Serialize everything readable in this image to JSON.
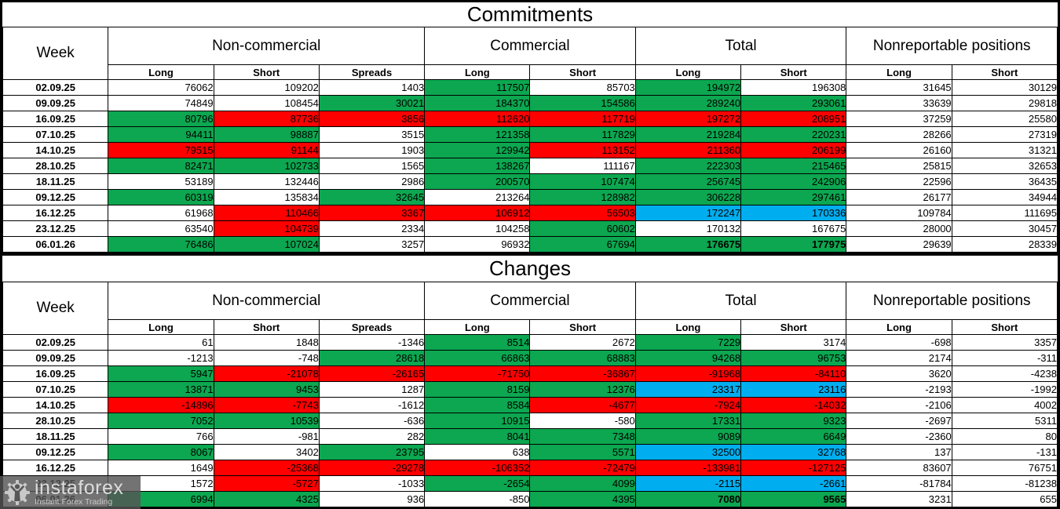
{
  "colors": {
    "w": "#FFFFFF",
    "g": "#0CA750",
    "r": "#FF0000",
    "b": "#00AEEF"
  },
  "header": {
    "week_label": "Week",
    "groups": [
      {
        "label": "Non-commercial",
        "columns": [
          "Long",
          "Short",
          "Spreads"
        ]
      },
      {
        "label": "Commercial",
        "columns": [
          "Long",
          "Short"
        ]
      },
      {
        "label": "Total",
        "columns": [
          "Long",
          "Short"
        ]
      },
      {
        "label": "Nonreportable positions",
        "columns": [
          "Long",
          "Short"
        ]
      }
    ]
  },
  "chart_data": [
    {
      "type": "table",
      "title": "Commitments",
      "rows": [
        {
          "week": "02.09.25",
          "cells": [
            [
              76062,
              "w"
            ],
            [
              109202,
              "w"
            ],
            [
              1403,
              "w"
            ],
            [
              117507,
              "g"
            ],
            [
              85703,
              "w"
            ],
            [
              194972,
              "g"
            ],
            [
              196308,
              "w"
            ],
            [
              31645,
              "w"
            ],
            [
              30129,
              "w"
            ]
          ]
        },
        {
          "week": "09.09.25",
          "cells": [
            [
              74849,
              "w"
            ],
            [
              108454,
              "w"
            ],
            [
              30021,
              "g"
            ],
            [
              184370,
              "g"
            ],
            [
              154586,
              "g"
            ],
            [
              289240,
              "g"
            ],
            [
              293061,
              "g"
            ],
            [
              33639,
              "w"
            ],
            [
              29818,
              "w"
            ]
          ]
        },
        {
          "week": "16.09.25",
          "cells": [
            [
              80796,
              "g"
            ],
            [
              87736,
              "r"
            ],
            [
              3856,
              "r"
            ],
            [
              112620,
              "r"
            ],
            [
              117719,
              "r"
            ],
            [
              197272,
              "r"
            ],
            [
              208951,
              "r"
            ],
            [
              37259,
              "w"
            ],
            [
              25580,
              "w"
            ]
          ]
        },
        {
          "week": "07.10.25",
          "cells": [
            [
              94411,
              "g"
            ],
            [
              98887,
              "g"
            ],
            [
              3515,
              "w"
            ],
            [
              121358,
              "g"
            ],
            [
              117829,
              "g"
            ],
            [
              219284,
              "g"
            ],
            [
              220231,
              "g"
            ],
            [
              28266,
              "w"
            ],
            [
              27319,
              "w"
            ]
          ]
        },
        {
          "week": "14.10.25",
          "cells": [
            [
              79515,
              "r"
            ],
            [
              91144,
              "r"
            ],
            [
              1903,
              "w"
            ],
            [
              129942,
              "g"
            ],
            [
              113152,
              "r"
            ],
            [
              211360,
              "r"
            ],
            [
              206199,
              "r"
            ],
            [
              26160,
              "w"
            ],
            [
              31321,
              "w"
            ]
          ]
        },
        {
          "week": "28.10.25",
          "cells": [
            [
              82471,
              "g"
            ],
            [
              102733,
              "g"
            ],
            [
              1565,
              "w"
            ],
            [
              138267,
              "g"
            ],
            [
              111167,
              "w"
            ],
            [
              222303,
              "g"
            ],
            [
              215465,
              "g"
            ],
            [
              25815,
              "w"
            ],
            [
              32653,
              "w"
            ]
          ]
        },
        {
          "week": "18.11.25",
          "cells": [
            [
              53189,
              "w"
            ],
            [
              132446,
              "w"
            ],
            [
              2986,
              "w"
            ],
            [
              200570,
              "g"
            ],
            [
              107474,
              "g"
            ],
            [
              256745,
              "g"
            ],
            [
              242906,
              "g"
            ],
            [
              22596,
              "w"
            ],
            [
              36435,
              "w"
            ]
          ]
        },
        {
          "week": "09.12.25",
          "cells": [
            [
              60319,
              "g"
            ],
            [
              135834,
              "w"
            ],
            [
              32645,
              "g"
            ],
            [
              213264,
              "w"
            ],
            [
              128982,
              "g"
            ],
            [
              306228,
              "g"
            ],
            [
              297461,
              "g"
            ],
            [
              26177,
              "w"
            ],
            [
              34944,
              "w"
            ]
          ]
        },
        {
          "week": "16.12.25",
          "cells": [
            [
              61968,
              "w"
            ],
            [
              110466,
              "r"
            ],
            [
              3367,
              "r"
            ],
            [
              106912,
              "r"
            ],
            [
              56503,
              "r"
            ],
            [
              172247,
              "b"
            ],
            [
              170336,
              "b"
            ],
            [
              109784,
              "w"
            ],
            [
              111695,
              "w"
            ]
          ]
        },
        {
          "week": "23.12.25",
          "cells": [
            [
              63540,
              "w"
            ],
            [
              104739,
              "r"
            ],
            [
              2334,
              "w"
            ],
            [
              104258,
              "w"
            ],
            [
              60602,
              "g"
            ],
            [
              170132,
              "w"
            ],
            [
              167675,
              "w"
            ],
            [
              28000,
              "w"
            ],
            [
              30457,
              "w"
            ]
          ]
        },
        {
          "week": "06.01.26",
          "cells": [
            [
              76486,
              "g"
            ],
            [
              107024,
              "g"
            ],
            [
              3257,
              "w"
            ],
            [
              96932,
              "w"
            ],
            [
              67694,
              "g"
            ],
            [
              176675,
              "g",
              1
            ],
            [
              177975,
              "g",
              1
            ],
            [
              29639,
              "w"
            ],
            [
              28339,
              "w"
            ]
          ]
        }
      ]
    },
    {
      "type": "table",
      "title": "Changes",
      "rows": [
        {
          "week": "02.09.25",
          "cells": [
            [
              61,
              "w"
            ],
            [
              1848,
              "w"
            ],
            [
              -1346,
              "w"
            ],
            [
              8514,
              "g"
            ],
            [
              2672,
              "w"
            ],
            [
              7229,
              "g"
            ],
            [
              3174,
              "w"
            ],
            [
              -698,
              "w"
            ],
            [
              3357,
              "w"
            ]
          ]
        },
        {
          "week": "09.09.25",
          "cells": [
            [
              -1213,
              "w"
            ],
            [
              -748,
              "w"
            ],
            [
              28618,
              "g"
            ],
            [
              66863,
              "g"
            ],
            [
              68883,
              "g"
            ],
            [
              94268,
              "g"
            ],
            [
              96753,
              "g"
            ],
            [
              2174,
              "w"
            ],
            [
              -311,
              "w"
            ]
          ]
        },
        {
          "week": "16.09.25",
          "cells": [
            [
              5947,
              "g"
            ],
            [
              -21078,
              "r"
            ],
            [
              -26165,
              "r"
            ],
            [
              -71750,
              "r"
            ],
            [
              -36867,
              "r"
            ],
            [
              -91968,
              "r"
            ],
            [
              -84110,
              "r"
            ],
            [
              3620,
              "w"
            ],
            [
              -4238,
              "w"
            ]
          ]
        },
        {
          "week": "07.10.25",
          "cells": [
            [
              13871,
              "g"
            ],
            [
              9453,
              "g"
            ],
            [
              1287,
              "w"
            ],
            [
              8159,
              "g"
            ],
            [
              12376,
              "g"
            ],
            [
              23317,
              "b"
            ],
            [
              23116,
              "b"
            ],
            [
              -2193,
              "w"
            ],
            [
              -1992,
              "w"
            ]
          ]
        },
        {
          "week": "14.10.25",
          "cells": [
            [
              -14896,
              "r"
            ],
            [
              -7743,
              "r"
            ],
            [
              -1612,
              "w"
            ],
            [
              8584,
              "g"
            ],
            [
              -4677,
              "r"
            ],
            [
              -7924,
              "r"
            ],
            [
              -14032,
              "r"
            ],
            [
              -2106,
              "w"
            ],
            [
              4002,
              "w"
            ]
          ]
        },
        {
          "week": "28.10.25",
          "cells": [
            [
              7052,
              "g"
            ],
            [
              10539,
              "g"
            ],
            [
              -636,
              "w"
            ],
            [
              10915,
              "g"
            ],
            [
              -580,
              "w"
            ],
            [
              17331,
              "g"
            ],
            [
              9323,
              "g"
            ],
            [
              -2697,
              "w"
            ],
            [
              5311,
              "w"
            ]
          ]
        },
        {
          "week": "18.11.25",
          "cells": [
            [
              766,
              "w"
            ],
            [
              -981,
              "w"
            ],
            [
              282,
              "w"
            ],
            [
              8041,
              "g"
            ],
            [
              7348,
              "g"
            ],
            [
              9089,
              "g"
            ],
            [
              6649,
              "g"
            ],
            [
              -2360,
              "w"
            ],
            [
              80,
              "w"
            ]
          ]
        },
        {
          "week": "09.12.25",
          "cells": [
            [
              8067,
              "g"
            ],
            [
              3402,
              "w"
            ],
            [
              23795,
              "g"
            ],
            [
              638,
              "w"
            ],
            [
              5571,
              "g"
            ],
            [
              32500,
              "b"
            ],
            [
              32768,
              "b"
            ],
            [
              137,
              "w"
            ],
            [
              -131,
              "w"
            ]
          ]
        },
        {
          "week": "16.12.25",
          "cells": [
            [
              1649,
              "w"
            ],
            [
              -25368,
              "r"
            ],
            [
              -29278,
              "r"
            ],
            [
              -106352,
              "r"
            ],
            [
              -72479,
              "r"
            ],
            [
              -133981,
              "r"
            ],
            [
              -127125,
              "r"
            ],
            [
              83607,
              "w"
            ],
            [
              76751,
              "w"
            ]
          ]
        },
        {
          "week": "23.12.25",
          "cells": [
            [
              1572,
              "w"
            ],
            [
              -5727,
              "r"
            ],
            [
              -1033,
              "w"
            ],
            [
              -2654,
              "g"
            ],
            [
              4099,
              "g"
            ],
            [
              -2115,
              "b"
            ],
            [
              -2661,
              "b"
            ],
            [
              -81784,
              "w"
            ],
            [
              -81238,
              "w"
            ]
          ]
        },
        {
          "week": "06.01.26",
          "cells": [
            [
              6994,
              "g"
            ],
            [
              4325,
              "g"
            ],
            [
              936,
              "w"
            ],
            [
              -850,
              "w"
            ],
            [
              4395,
              "g"
            ],
            [
              7080,
              "g",
              1
            ],
            [
              9565,
              "g",
              1
            ],
            [
              3231,
              "w"
            ],
            [
              655,
              "w"
            ]
          ]
        }
      ]
    }
  ],
  "watermark": {
    "brand": "instaforex",
    "tagline": "Instant Forex Trading"
  }
}
